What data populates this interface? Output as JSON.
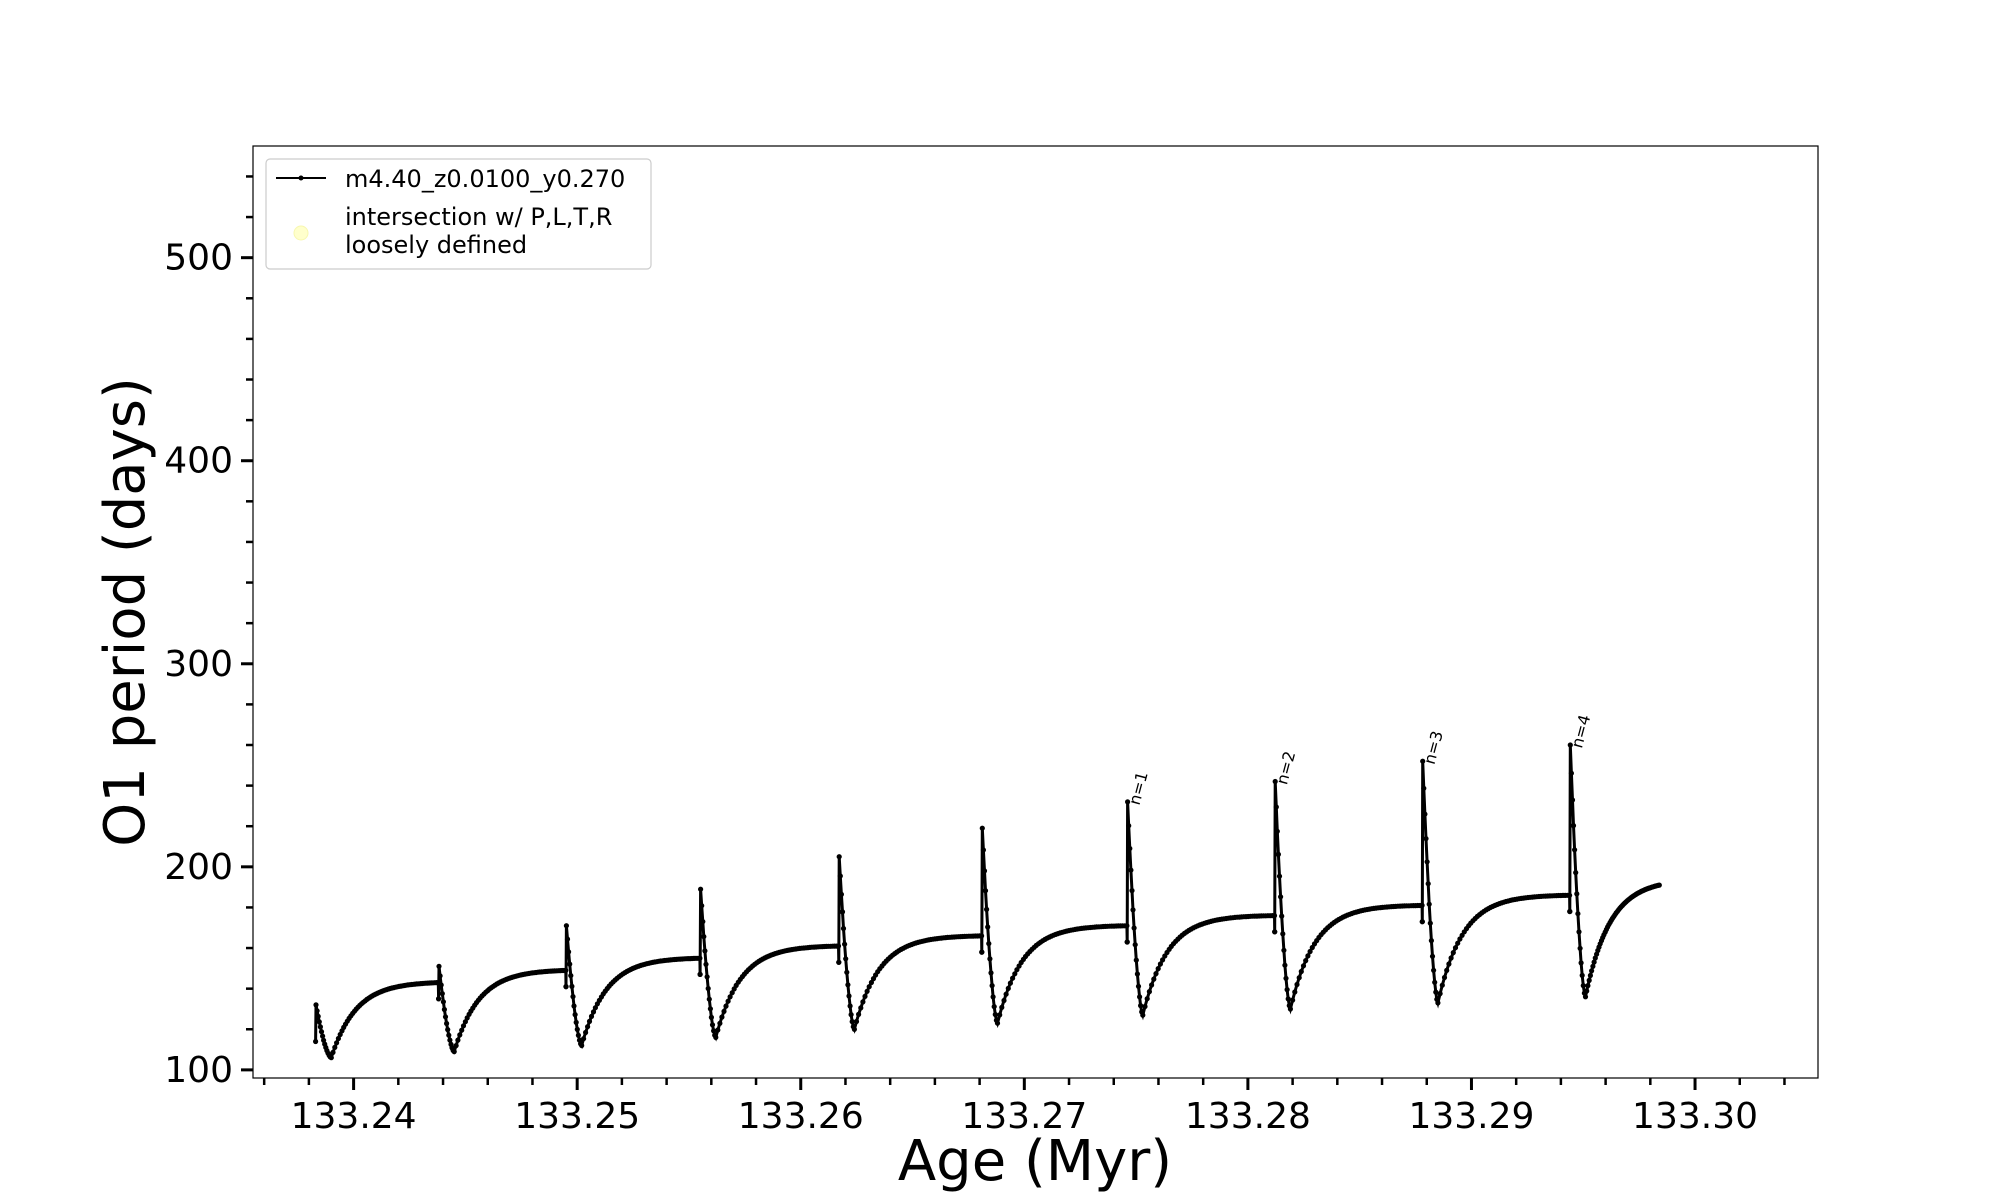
{
  "chart_data": {
    "type": "line",
    "title": "",
    "xlabel": "Age (Myr)",
    "ylabel": "O1 period (days)",
    "xlim": [
      133.2355,
      133.3055
    ],
    "ylim": [
      96,
      555
    ],
    "xticks": [
      133.24,
      133.25,
      133.26,
      133.27,
      133.28,
      133.29,
      133.3
    ],
    "xtick_labels": [
      "133.24",
      "133.25",
      "133.26",
      "133.27",
      "133.28",
      "133.29",
      "133.30"
    ],
    "yticks": [
      100,
      200,
      300,
      400,
      500
    ],
    "ytick_labels": [
      "100",
      "200",
      "300",
      "400",
      "500"
    ],
    "grid": false,
    "legend_position": "upper-left",
    "series": [
      {
        "name": "m4.40_z0.0100_y0.270",
        "color": "#000000",
        "marker": "dot",
        "cycles": [
          {
            "x_start": 133.2383,
            "x_end": 133.2438,
            "peak": 132,
            "min": 106,
            "plateau": 143
          },
          {
            "x_start": 133.2438,
            "x_end": 133.2495,
            "peak": 151,
            "min": 109,
            "plateau": 149
          },
          {
            "x_start": 133.2495,
            "x_end": 133.2555,
            "peak": 171,
            "min": 112,
            "plateau": 155
          },
          {
            "x_start": 133.2555,
            "x_end": 133.2617,
            "peak": 189,
            "min": 116,
            "plateau": 161
          },
          {
            "x_start": 133.2617,
            "x_end": 133.2681,
            "peak": 205,
            "min": 120,
            "plateau": 166
          },
          {
            "x_start": 133.2681,
            "x_end": 133.2746,
            "peak": 219,
            "min": 123,
            "plateau": 171
          },
          {
            "x_start": 133.2746,
            "x_end": 133.2812,
            "peak": 232,
            "min": 127,
            "plateau": 176
          },
          {
            "x_start": 133.2812,
            "x_end": 133.2878,
            "peak": 242,
            "min": 130,
            "plateau": 181
          },
          {
            "x_start": 133.2878,
            "x_end": 133.2944,
            "peak": 252,
            "min": 133,
            "plateau": 186
          },
          {
            "x_start": 133.2944,
            "x_end": 133.2984,
            "peak": 260,
            "min": 136,
            "plateau": 191
          }
        ]
      },
      {
        "name": "intersection w/ P,L,T,R\nloosely defined",
        "color": "#ffffcc",
        "marker": "circle",
        "points": []
      }
    ],
    "annotations": [
      {
        "text": "n=1",
        "cycle": 6
      },
      {
        "text": "n=2",
        "cycle": 7
      },
      {
        "text": "n=3",
        "cycle": 8
      },
      {
        "text": "n=4",
        "cycle": 9
      }
    ]
  }
}
